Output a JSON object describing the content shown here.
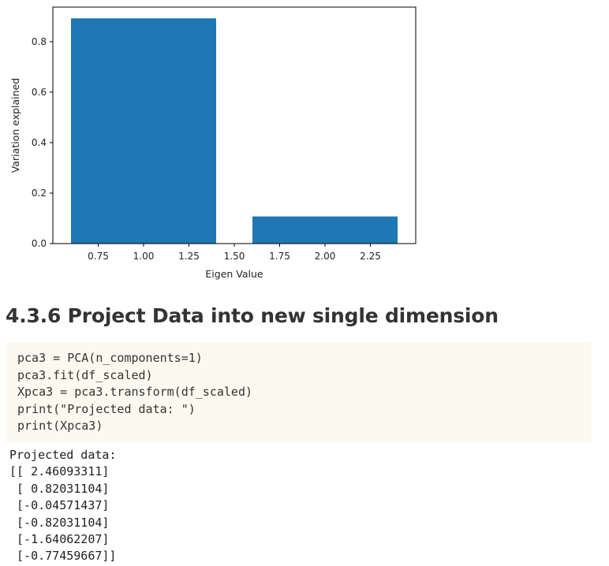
{
  "chart_data": {
    "type": "bar",
    "title": "",
    "xlabel": "Eigen Value",
    "ylabel": "Variation explained",
    "x": [
      1,
      2
    ],
    "bar_width": 0.8,
    "values": [
      0.8925,
      0.1075
    ],
    "xlim": [
      0.5,
      2.5
    ],
    "ylim": [
      0,
      0.937
    ],
    "xticks": [
      0.75,
      1.0,
      1.25,
      1.5,
      1.75,
      2.0,
      2.25
    ],
    "xtick_labels": [
      "0.75",
      "1.00",
      "1.25",
      "1.50",
      "1.75",
      "2.00",
      "2.25"
    ],
    "yticks": [
      0.0,
      0.2,
      0.4,
      0.6,
      0.8
    ],
    "ytick_labels": [
      "0.0",
      "0.2",
      "0.4",
      "0.6",
      "0.8"
    ],
    "grid": false,
    "bar_color": "#1f77b4"
  },
  "section": {
    "heading": "4.3.6 Project Data into new single dimension"
  },
  "code": {
    "lines": [
      "pca3 = PCA(n_components=1)",
      "pca3.fit(df_scaled)",
      "Xpca3 = pca3.transform(df_scaled)",
      "print(\"Projected data: \")",
      "print(Xpca3)"
    ]
  },
  "output": {
    "lines": [
      "Projected data: ",
      "[[ 2.46093311]",
      " [ 0.82031104]",
      " [-0.04571437]",
      " [-0.82031104]",
      " [-1.64062207]",
      " [-0.77459667]]"
    ]
  }
}
